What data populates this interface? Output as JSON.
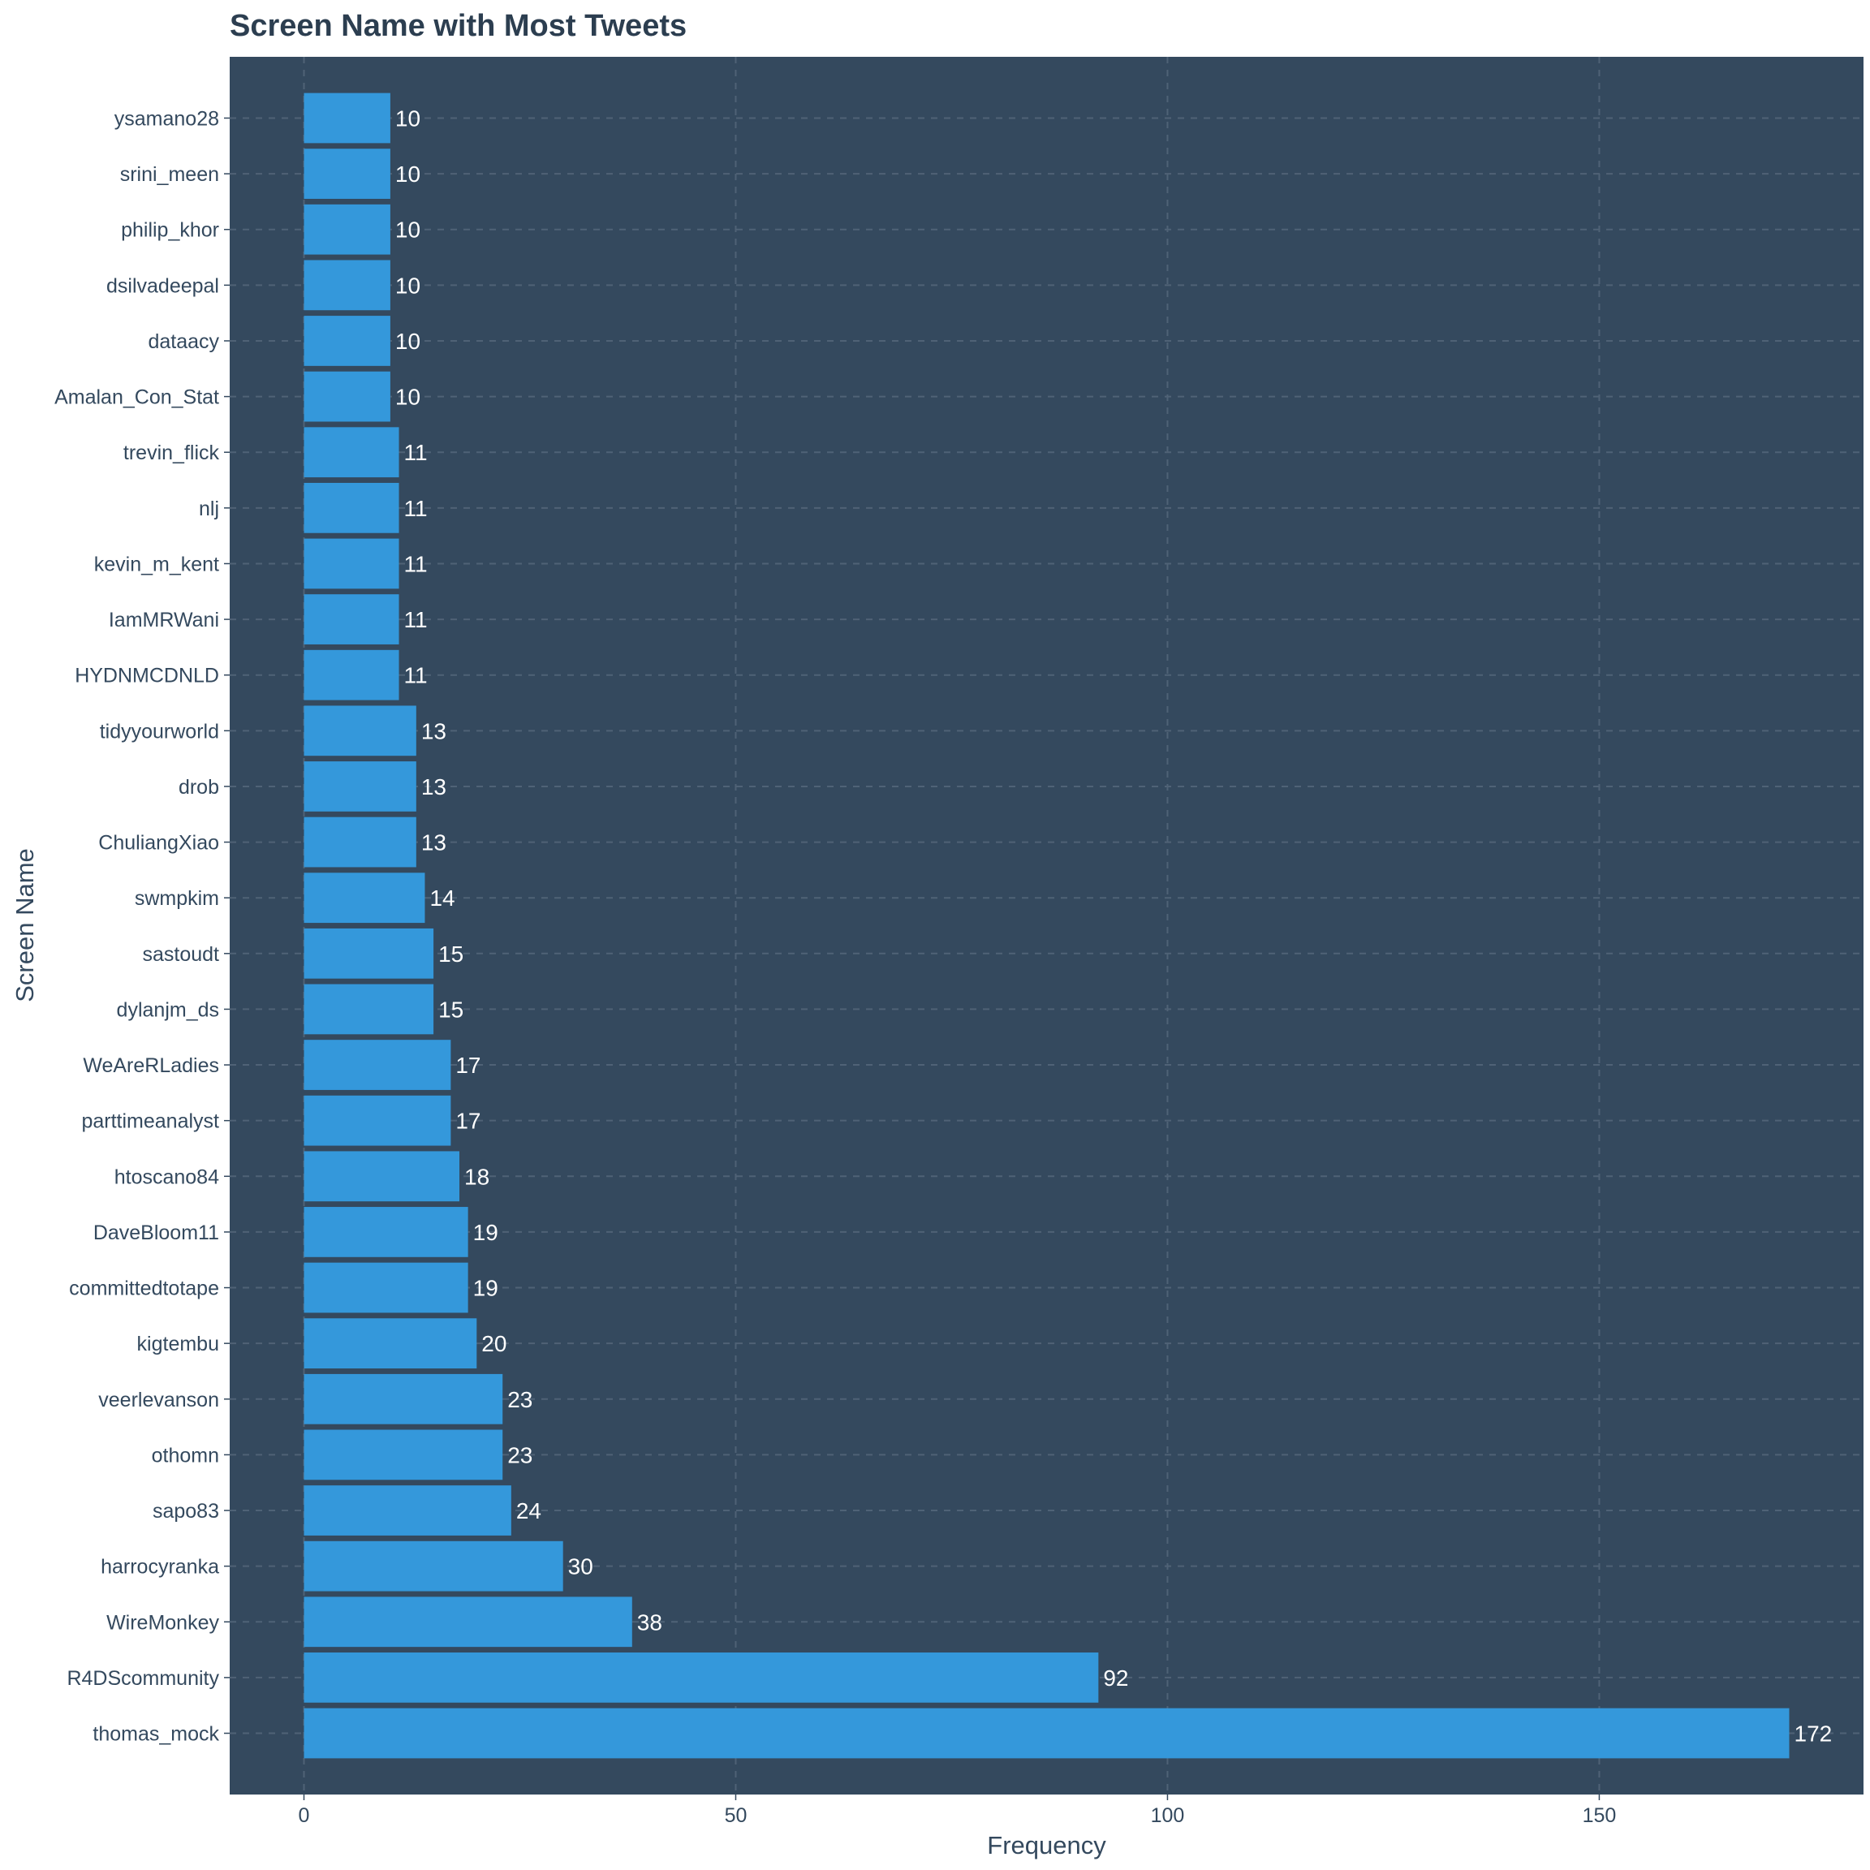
{
  "chart_data": {
    "type": "bar",
    "orientation": "horizontal",
    "title": "Screen Name with Most Tweets",
    "xlabel": "Frequency",
    "ylabel": "Screen Name",
    "xlim": [
      -8.6,
      180.6
    ],
    "x_ticks": [
      0,
      50,
      100,
      150
    ],
    "grid": true,
    "legend": "none",
    "categories": [
      "thomas_mock",
      "R4DScommunity",
      "WireMonkey",
      "harrocyranka",
      "sapo83",
      "othomn",
      "veerlevanson",
      "kigtembu",
      "committedtotape",
      "DaveBloom11",
      "htoscano84",
      "parttimeanalyst",
      "WeAreRLadies",
      "dylanjm_ds",
      "sastoudt",
      "swmpkim",
      "ChuliangXiao",
      "drob",
      "tidyyourworld",
      "HYDNMCDNLD",
      "IamMRWani",
      "kevin_m_kent",
      "nlj",
      "trevin_flick",
      "Amalan_Con_Stat",
      "dataacy",
      "dsilvadeepal",
      "philip_khor",
      "srini_meen",
      "ysamano28"
    ],
    "values": [
      172,
      92,
      38,
      30,
      24,
      23,
      23,
      20,
      19,
      19,
      18,
      17,
      17,
      15,
      15,
      14,
      13,
      13,
      13,
      11,
      11,
      11,
      11,
      11,
      10,
      10,
      10,
      10,
      10,
      10
    ],
    "data_labels": [
      "172",
      "92",
      "38",
      "30",
      "24",
      "23",
      "23",
      "20",
      "19",
      "19",
      "18",
      "17",
      "17",
      "15",
      "15",
      "14",
      "13",
      "13",
      "13",
      "11",
      "11",
      "11",
      "11",
      "11",
      "10",
      "10",
      "10",
      "10",
      "10",
      "10"
    ],
    "colors": {
      "panel_background": "#34495e",
      "bar": "#3498db",
      "grid": "#4f6276",
      "title_text": "#2c3e50",
      "axis_text": "#34495e",
      "data_label_text": "#ffffff"
    }
  }
}
